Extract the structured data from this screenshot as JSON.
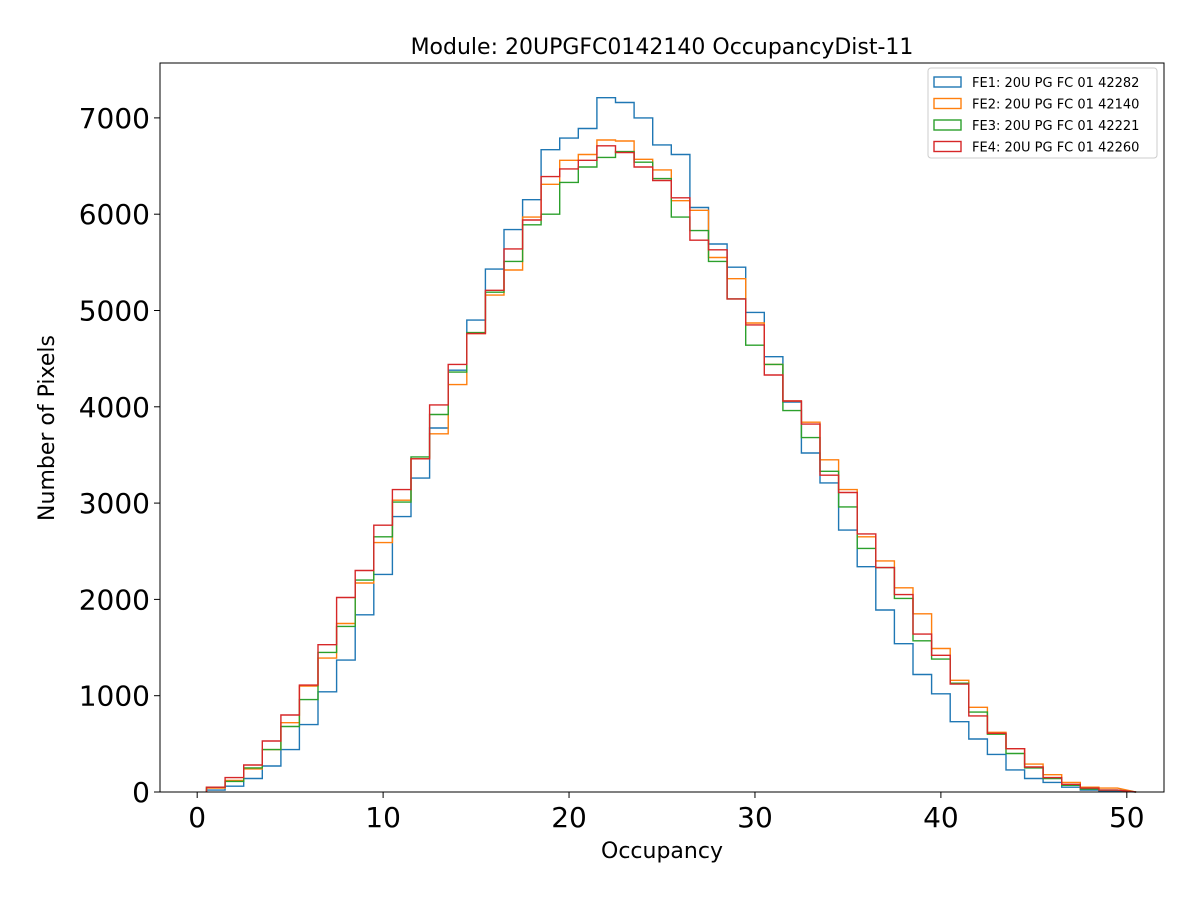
{
  "chart_data": {
    "type": "line",
    "title": "Module: 20UPGFC0142140 OccupancyDist-11",
    "xlabel": "Occupancy",
    "ylabel": "Number of Pixels",
    "xlim": [
      -2,
      52
    ],
    "ylim": [
      0,
      7570
    ],
    "xticks": [
      0,
      10,
      20,
      30,
      40,
      50
    ],
    "yticks": [
      0,
      1000,
      2000,
      3000,
      4000,
      5000,
      6000,
      7000
    ],
    "grid": false,
    "legend_position": "top-right",
    "bin_edges": [
      0.5,
      1.5,
      2.5,
      3.5,
      4.5,
      5.5,
      6.5,
      7.5,
      8.5,
      9.5,
      10.5,
      11.5,
      12.5,
      13.5,
      14.5,
      15.5,
      16.5,
      17.5,
      18.5,
      19.5,
      20.5,
      21.5,
      22.5,
      23.5,
      24.5,
      25.5,
      26.5,
      27.5,
      28.5,
      29.5,
      30.5,
      31.5,
      32.5,
      33.5,
      34.5,
      35.5,
      36.5,
      37.5,
      38.5,
      39.5,
      40.5,
      41.5,
      42.5,
      43.5,
      44.5,
      45.5,
      46.5,
      47.5,
      48.5,
      49.5
    ],
    "series": [
      {
        "name": "FE1: 20U PG FC 01 42282",
        "color": "#1f77b4",
        "values": [
          20,
          60,
          140,
          270,
          440,
          700,
          1040,
          1370,
          1840,
          2260,
          2860,
          3260,
          3780,
          4380,
          4900,
          5430,
          5840,
          6150,
          6670,
          6790,
          6890,
          7210,
          7160,
          7000,
          6720,
          6620,
          6070,
          5690,
          5450,
          4980,
          4520,
          4050,
          3520,
          3210,
          2720,
          2340,
          1890,
          1540,
          1220,
          1020,
          730,
          550,
          390,
          230,
          140,
          100,
          50,
          20,
          10
        ]
      },
      {
        "name": "FE2: 20U PG FC 01 42140",
        "color": "#ff7f0e",
        "values": [
          40,
          120,
          240,
          440,
          720,
          1100,
          1390,
          1750,
          2170,
          2590,
          3030,
          3460,
          3720,
          4230,
          4760,
          5160,
          5420,
          5970,
          6310,
          6560,
          6620,
          6770,
          6760,
          6570,
          6460,
          6140,
          6040,
          5550,
          5330,
          4870,
          4440,
          4060,
          3840,
          3450,
          3140,
          2650,
          2400,
          2120,
          1850,
          1490,
          1160,
          880,
          620,
          450,
          290,
          180,
          100,
          50,
          40
        ]
      },
      {
        "name": "FE3: 20U PG FC 01 42221",
        "color": "#2ca02c",
        "values": [
          50,
          110,
          250,
          440,
          680,
          960,
          1450,
          1720,
          2200,
          2650,
          3010,
          3480,
          3920,
          4360,
          4770,
          5190,
          5510,
          5890,
          6000,
          6330,
          6490,
          6590,
          6650,
          6540,
          6370,
          5970,
          5830,
          5510,
          5120,
          4640,
          4440,
          3960,
          3680,
          3330,
          2960,
          2530,
          2330,
          2010,
          1570,
          1380,
          1130,
          830,
          600,
          400,
          250,
          140,
          70,
          30,
          20
        ]
      },
      {
        "name": "FE4: 20U PG FC 01 42260",
        "color": "#d62728",
        "values": [
          50,
          150,
          280,
          530,
          800,
          1110,
          1530,
          2020,
          2300,
          2770,
          3140,
          3460,
          4020,
          4440,
          4760,
          5210,
          5640,
          5940,
          6390,
          6470,
          6560,
          6710,
          6640,
          6490,
          6350,
          6170,
          5730,
          5630,
          5120,
          4850,
          4330,
          4060,
          3820,
          3290,
          3110,
          2680,
          2330,
          2050,
          1640,
          1420,
          1120,
          790,
          610,
          450,
          260,
          150,
          80,
          40,
          20
        ]
      }
    ]
  }
}
